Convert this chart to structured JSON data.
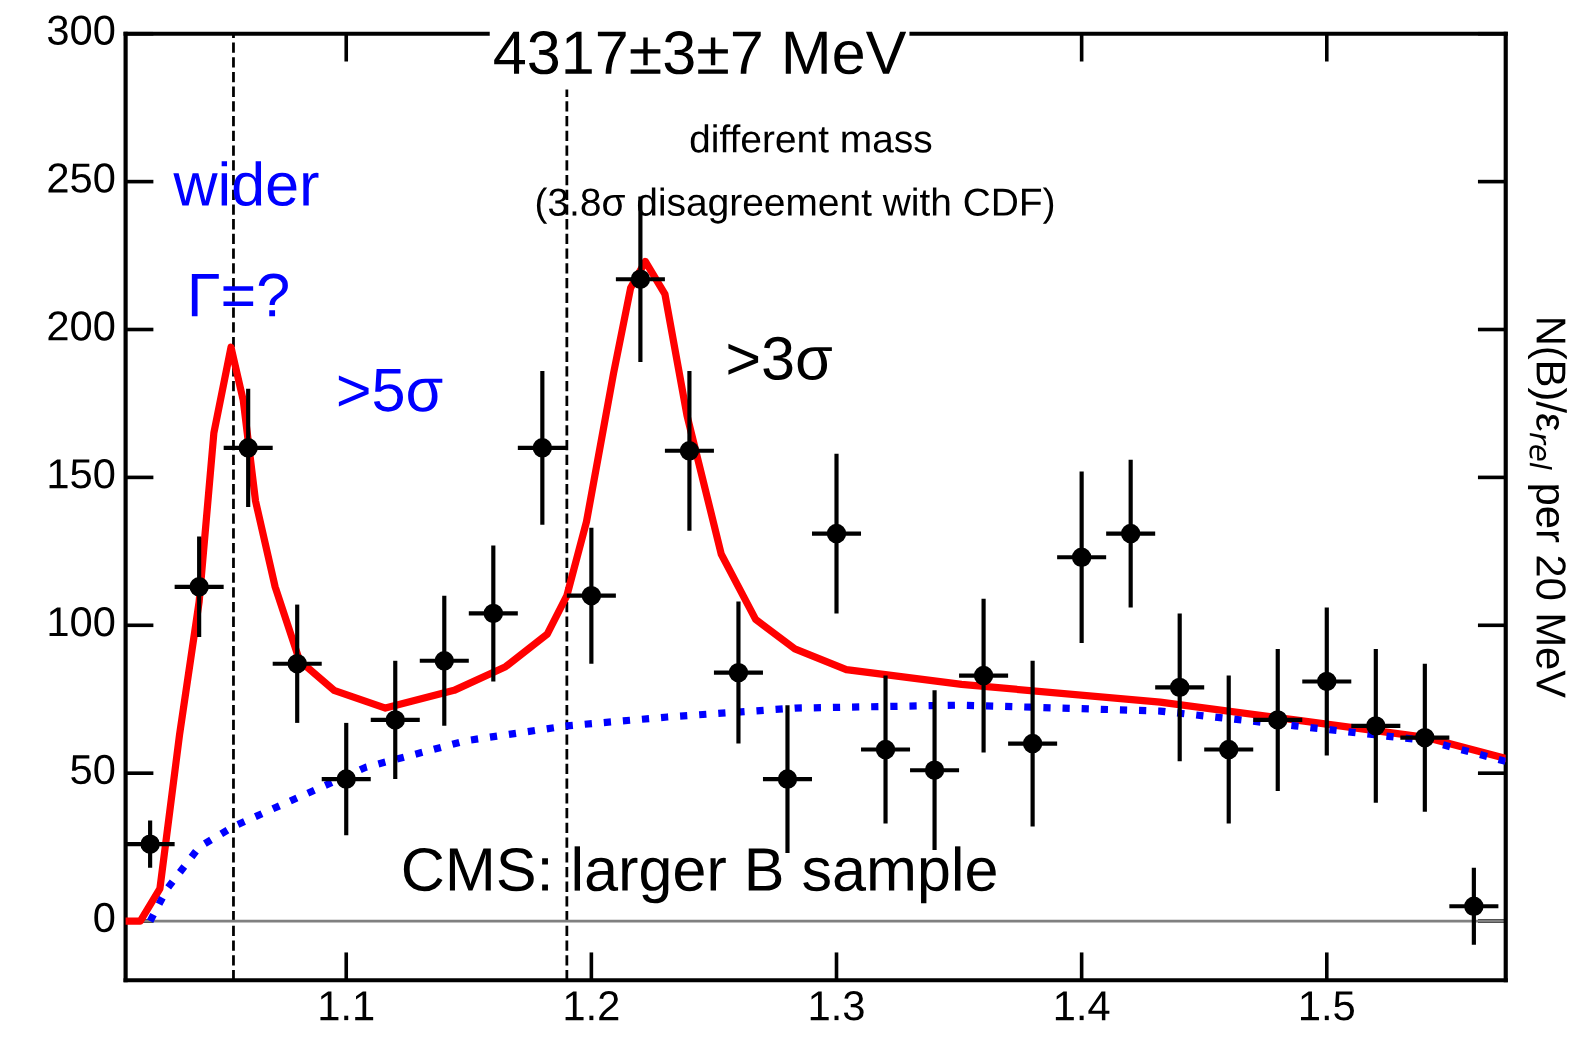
{
  "chart_data": {
    "type": "scatter",
    "ylabel": "N(B)/ε$_{rel}$ per 20 MeV",
    "annotations": [
      "4317±3±7 MeV",
      "different mass",
      "(3.8σ disagreement with CDF)",
      "wider",
      "Γ=?",
      ">5σ",
      ">3σ",
      "CMS: larger B sample"
    ],
    "series": [
      {
        "type": "scatter",
        "color": "#000000",
        "marker": "circle",
        "x": [
          1.02,
          1.04,
          1.06,
          1.08,
          1.1,
          1.12,
          1.14,
          1.16,
          1.18,
          1.2,
          1.22,
          1.24,
          1.26,
          1.28,
          1.3,
          1.32,
          1.34,
          1.36,
          1.38,
          1.4,
          1.42,
          1.44,
          1.46,
          1.48,
          1.5,
          1.52,
          1.54,
          1.56
        ],
        "values": [
          26,
          113,
          160,
          87,
          48,
          68,
          88,
          104,
          160,
          110,
          217,
          159,
          84,
          48,
          131,
          58,
          51,
          83,
          60,
          123,
          131,
          79,
          58,
          68,
          81,
          66,
          62,
          5
        ],
        "errors": [
          8,
          17,
          20,
          20,
          19,
          20,
          22,
          23,
          26,
          23,
          28,
          27,
          24,
          25,
          27,
          25,
          27,
          26,
          28,
          29,
          25,
          25,
          25,
          24,
          25,
          26,
          25,
          13
        ],
        "xerrors": [
          0.01,
          0.01,
          0.01,
          0.01,
          0.01,
          0.01,
          0.01,
          0.01,
          0.01,
          0.01,
          0.01,
          0.01,
          0.01,
          0.01,
          0.01,
          0.01,
          0.01,
          0.01,
          0.01,
          0.01,
          0.01,
          0.01,
          0.01,
          0.01,
          0.01,
          0.01,
          0.01,
          0.01
        ]
      },
      {
        "type": "line",
        "color": "#ff0000",
        "line_style": "solid",
        "x": [
          1.01,
          1.016,
          1.024,
          1.032,
          1.04,
          1.046,
          1.053,
          1.058,
          1.063,
          1.071,
          1.081,
          1.095,
          1.116,
          1.144,
          1.165,
          1.182,
          1.19,
          1.198,
          1.209,
          1.216,
          1.222,
          1.23,
          1.239,
          1.253,
          1.267,
          1.283,
          1.304,
          1.351,
          1.432,
          1.487,
          1.541,
          1.573
        ],
        "values": [
          0,
          0,
          11,
          63,
          108,
          165,
          194,
          176,
          142,
          113,
          88,
          78,
          72,
          78,
          86,
          97,
          110,
          135,
          185,
          214,
          223,
          212,
          171,
          124,
          102,
          92,
          85,
          80,
          74,
          68,
          62,
          55
        ]
      },
      {
        "type": "line",
        "color": "#0000ff",
        "line_style": "dotted",
        "x": [
          1.02,
          1.027,
          1.04,
          1.054,
          1.081,
          1.108,
          1.149,
          1.19,
          1.231,
          1.283,
          1.351,
          1.432,
          1.487,
          1.541,
          1.573
        ],
        "values": [
          0,
          11,
          25,
          32,
          42,
          52,
          61,
          66,
          69,
          72,
          73,
          71,
          66,
          61,
          54
        ]
      }
    ],
    "ref_lines": [
      {
        "axis": "x",
        "value": 1.054,
        "color": "#000000",
        "line_style": "dashed"
      },
      {
        "axis": "x",
        "value": 1.19,
        "color": "#000000",
        "line_style": "dashed"
      },
      {
        "axis": "y",
        "value": 0,
        "color": "#808080",
        "line_style": "solid"
      }
    ],
    "xlim": [
      1.01,
      1.573
    ],
    "ylim": [
      -20,
      300
    ],
    "xticks": [
      1.1,
      1.2,
      1.3,
      1.4,
      1.5
    ],
    "yticks": [
      0,
      50,
      100,
      150,
      200,
      250,
      300
    ],
    "grid": false,
    "legend": false
  }
}
